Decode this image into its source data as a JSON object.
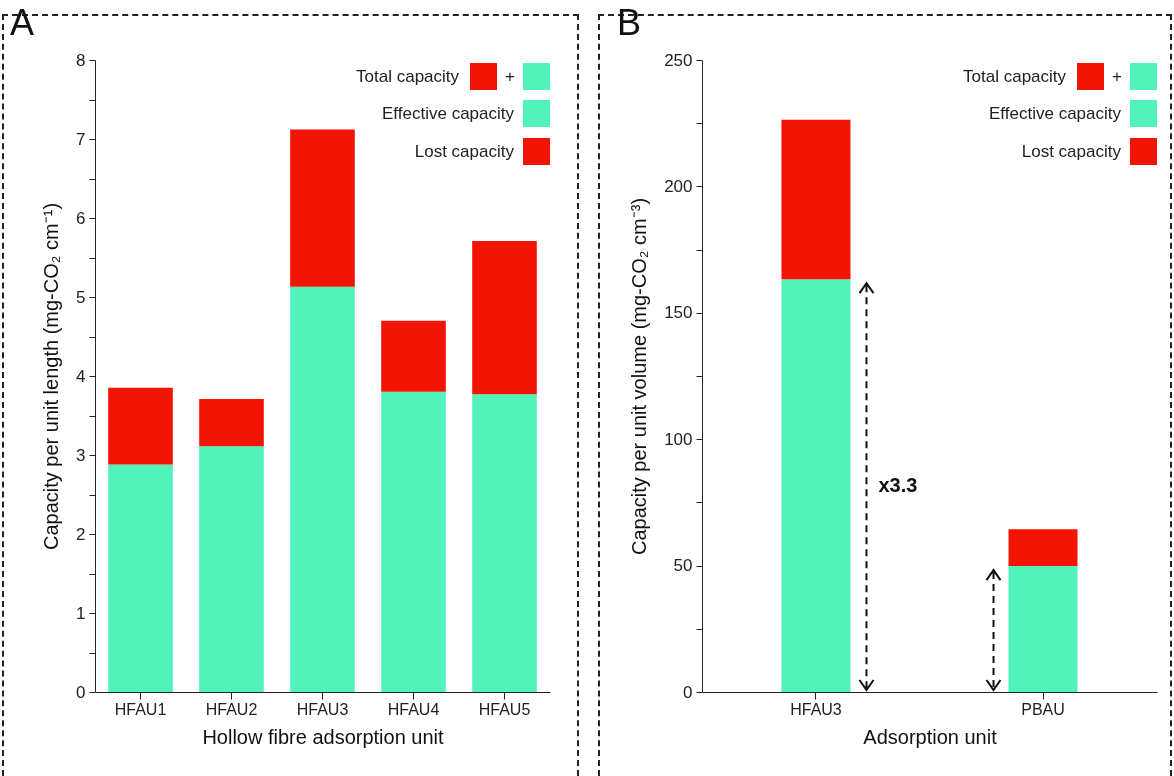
{
  "chart_data": [
    {
      "type": "bar",
      "title": "A",
      "xlabel": "Hollow fibre adsorption unit",
      "ylabel": "Capacity per unit length (mg-CO₂ cm⁻¹)",
      "stacked": true,
      "legend": "top right",
      "categories": [
        "HFAU1",
        "HFAU2",
        "HFAU3",
        "HFAU4",
        "HFAU5"
      ],
      "series": [
        {
          "name": "Effective capacity",
          "color": "#52f3bb",
          "values": [
            2.88,
            3.11,
            5.13,
            3.8,
            3.77
          ]
        },
        {
          "name": "Lost capacity",
          "color": "#f21505",
          "values": [
            0.97,
            0.6,
            1.99,
            0.9,
            1.94
          ]
        }
      ],
      "ylim": [
        0,
        8
      ],
      "yticks": [
        0,
        {
          "value": 0.5,
          "label": null
        },
        1,
        {
          "value": 1.5,
          "label": null
        },
        2,
        {
          "value": 2.5,
          "label": null
        },
        3,
        {
          "value": 3.5,
          "label": null
        },
        4,
        {
          "value": 4.5,
          "label": null
        },
        5,
        {
          "value": 5.5,
          "label": null
        },
        6,
        {
          "value": 6.5,
          "label": null
        },
        7,
        {
          "value": 7.5,
          "label": null
        },
        8
      ],
      "annotations": [
        "Total capacity",
        "+"
      ]
    },
    {
      "type": "bar",
      "title": "B",
      "xlabel": "Adsorption unit",
      "ylabel": "Capacity per unit volume (mg-CO₂ cm⁻³)",
      "stacked": true,
      "legend": "top right",
      "categories": [
        "HFAU3",
        "PBAU"
      ],
      "series": [
        {
          "name": "Effective capacity",
          "color": "#52f3bb",
          "values": [
            163.3,
            49.8
          ]
        },
        {
          "name": "Lost capacity",
          "color": "#f21505",
          "values": [
            63.1,
            14.6
          ]
        }
      ],
      "ylim": [
        0,
        250
      ],
      "yticks": [
        0,
        {
          "value": 25,
          "label": null
        },
        50,
        {
          "value": 75,
          "label": null
        },
        100,
        {
          "value": 125,
          "label": null
        },
        150,
        {
          "value": 175,
          "label": null
        },
        200,
        {
          "value": 225,
          "label": null
        },
        250
      ],
      "annotations": [
        "Total capacity",
        "+",
        "x3.3"
      ]
    }
  ]
}
